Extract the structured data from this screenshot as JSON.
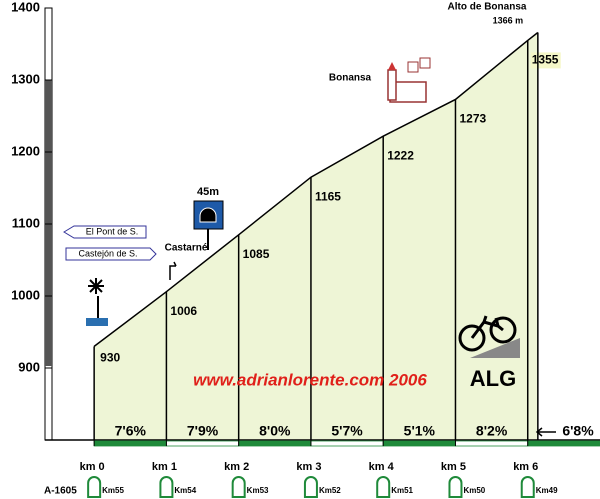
{
  "chart_data": {
    "type": "area",
    "x": [
      0,
      1,
      2,
      3,
      4,
      5,
      6,
      6.14
    ],
    "values": [
      930,
      1006,
      1085,
      1165,
      1222,
      1273,
      1355,
      1366
    ],
    "value_labels": [
      "930",
      "1006",
      "1085",
      "1165",
      "1222",
      "1273",
      "1355",
      "1366 m"
    ],
    "color": "#eef5d6",
    "xlim": [
      -0.68,
      7
    ],
    "xticks": [
      {
        "value": 0,
        "label": "km 0"
      },
      {
        "value": 1,
        "label": "km 1"
      },
      {
        "value": 2,
        "label": "km 2"
      },
      {
        "value": 3,
        "label": "km 3"
      },
      {
        "value": 4,
        "label": "km 4"
      },
      {
        "value": 5,
        "label": "km 5"
      },
      {
        "value": 6,
        "label": "km 6"
      }
    ],
    "ylim": [
      800,
      1400
    ],
    "yticks": [
      900,
      1000,
      1100,
      1200,
      1300,
      1400
    ],
    "gradient_labels": [
      "7'6%",
      "7'9%",
      "8'0%",
      "5'7%",
      "5'1%",
      "8'2%",
      "6'8%"
    ],
    "road": "A-1605",
    "milestones": [
      "Km55",
      "Km54",
      "Km53",
      "Km52",
      "Km51",
      "Km50",
      "Km49"
    ],
    "annotations": [
      "Alto de Bonansa",
      "Bonansa",
      "Castarné",
      "45m",
      "El Pont de S.",
      "Castejón de S.",
      "www.adrianlorente.com 2006",
      "ALG"
    ]
  }
}
